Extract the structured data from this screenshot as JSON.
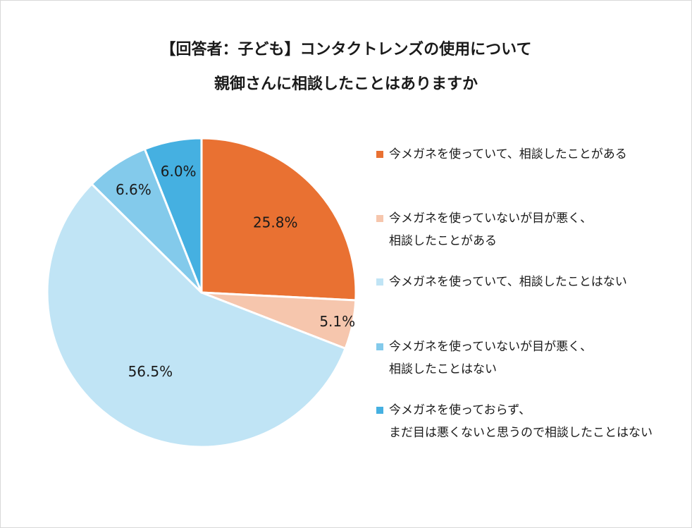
{
  "title": {
    "line1": "【回答者：子ども】コンタクトレンズの使用について",
    "line2": "親御さんに相談したことはありますか"
  },
  "chart_data": {
    "type": "pie",
    "title": "【回答者：子ども】コンタクトレンズの使用について 親御さんに相談したことはありますか",
    "start_angle_deg": 0,
    "direction": "clockwise",
    "slices": [
      {
        "label": "今メガネを使っていて、相談したことがある",
        "lines": [
          "今メガネを使っていて、相談したことがある"
        ],
        "value": 25.8,
        "value_label": "25.8%",
        "color": "#E97132"
      },
      {
        "label": "今メガネを使っていないが目が悪く、相談したことがある",
        "lines": [
          "今メガネを使っていないが目が悪く、",
          "相談したことがある"
        ],
        "value": 5.1,
        "value_label": "5.1%",
        "color": "#F6C6AD"
      },
      {
        "label": "今メガネを使っていて、相談したことはない",
        "lines": [
          "今メガネを使っていて、相談したことはない"
        ],
        "value": 56.5,
        "value_label": "56.5%",
        "color": "#C0E4F5"
      },
      {
        "label": "今メガネを使っていないが目が悪く、相談したことはない",
        "lines": [
          "今メガネを使っていないが目が悪く、",
          "相談したことはない"
        ],
        "value": 6.6,
        "value_label": "6.6%",
        "color": "#83CAEB"
      },
      {
        "label": "今メガネを使っておらず、まだ目は悪くないと思うので相談したことはない",
        "lines": [
          "今メガネを使っておらず、",
          "まだ目は悪くないと思うので相談したことはない"
        ],
        "value": 6.0,
        "value_label": "6.0%",
        "color": "#45B0E1"
      }
    ],
    "legend_position": "right"
  }
}
